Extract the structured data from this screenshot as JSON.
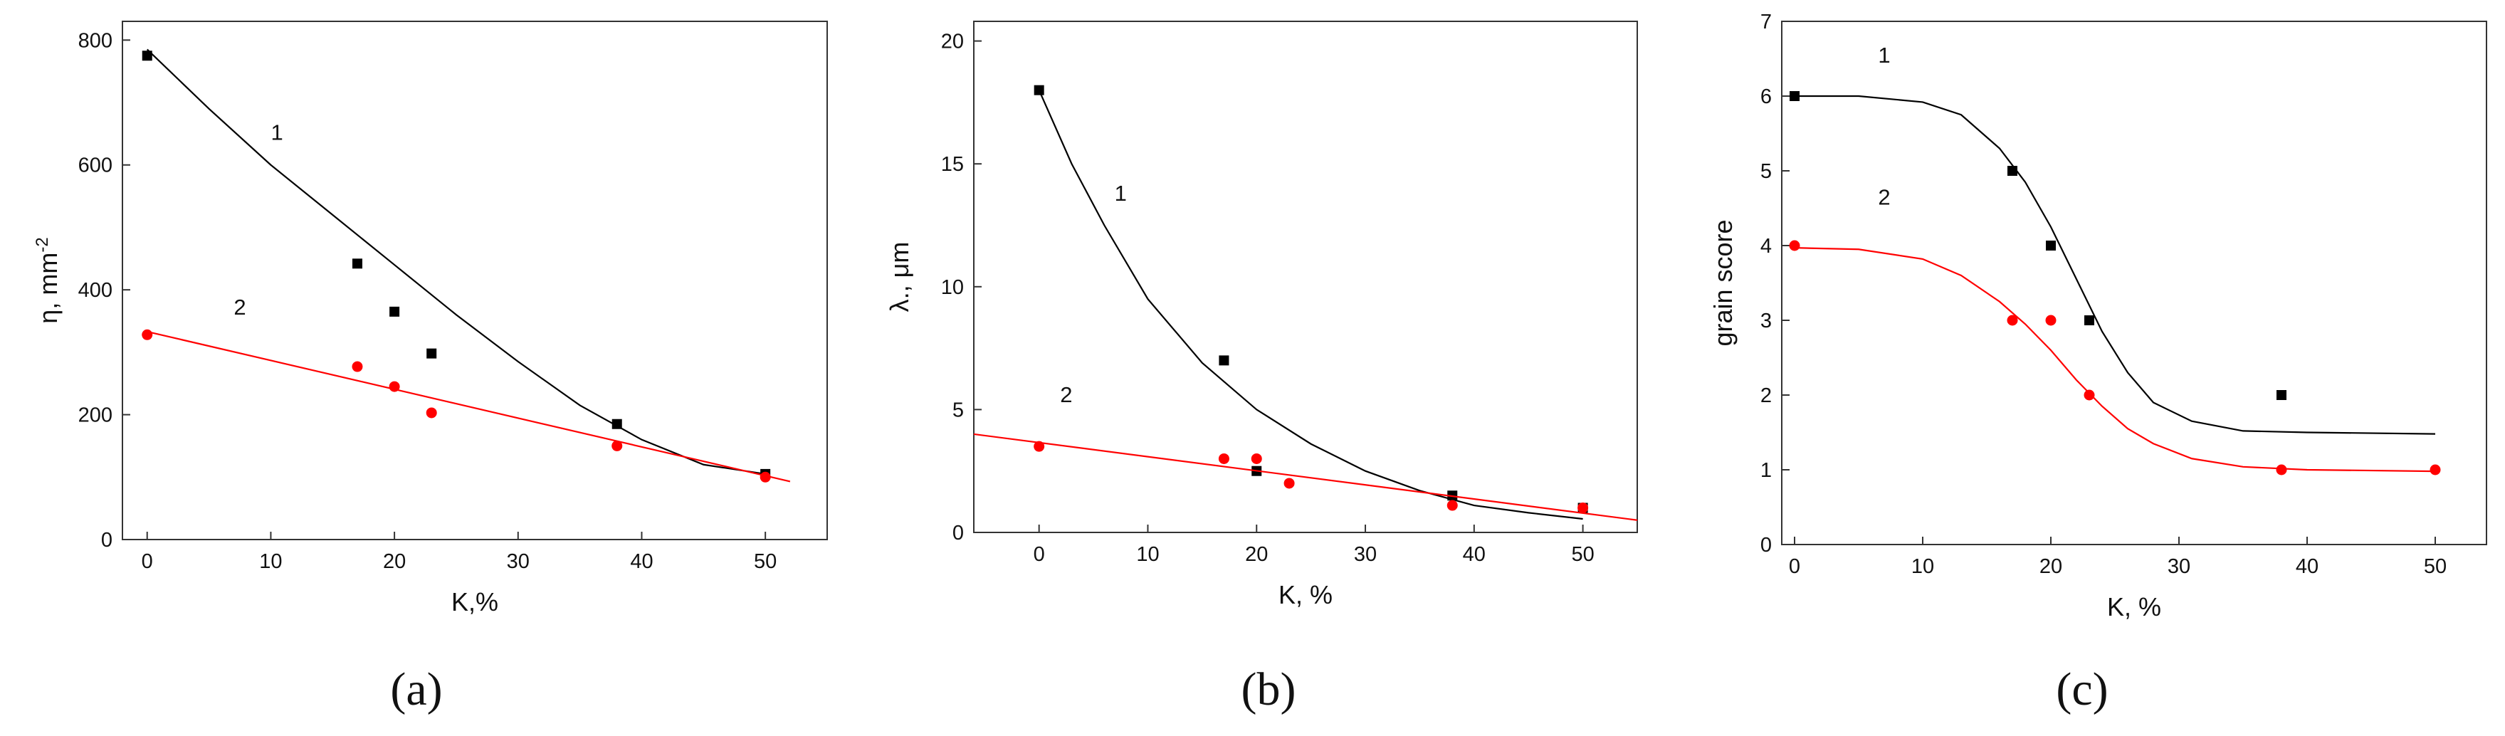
{
  "chart_data": [
    {
      "type": "scatter",
      "panel_label": "(a)",
      "xlabel": "K,%",
      "ylabel": "η, mm",
      "ylabel_sup": "-2",
      "xlim": [
        -2,
        55
      ],
      "ylim": [
        0,
        830
      ],
      "xticks": [
        0,
        10,
        20,
        30,
        40,
        50
      ],
      "yticks": [
        0,
        200,
        400,
        600,
        800
      ],
      "series": [
        {
          "name": "1",
          "color": "#000000",
          "marker": "square",
          "points": [
            [
              0,
              775
            ],
            [
              17,
              442
            ],
            [
              20,
              365
            ],
            [
              23,
              298
            ],
            [
              38,
              185
            ],
            [
              50,
              105
            ]
          ],
          "fit": [
            [
              0,
              785
            ],
            [
              5,
              690
            ],
            [
              10,
              600
            ],
            [
              15,
              520
            ],
            [
              20,
              440
            ],
            [
              25,
              360
            ],
            [
              30,
              285
            ],
            [
              35,
              215
            ],
            [
              40,
              160
            ],
            [
              45,
              120
            ],
            [
              50,
              105
            ]
          ],
          "label_at": [
            10.5,
            640
          ]
        },
        {
          "name": "2",
          "color": "#ff0000",
          "marker": "circle",
          "points": [
            [
              0,
              328
            ],
            [
              17,
              277
            ],
            [
              20,
              245
            ],
            [
              23,
              203
            ],
            [
              38,
              150
            ],
            [
              50,
              100
            ]
          ],
          "fit": [
            [
              0,
              333
            ],
            [
              52,
              93
            ]
          ],
          "label_at": [
            7.5,
            360
          ]
        }
      ]
    },
    {
      "type": "scatter",
      "panel_label": "(b)",
      "xlabel": "K, %",
      "ylabel": "λ., μm",
      "xlim": [
        -6,
        55
      ],
      "ylim": [
        0,
        20.8
      ],
      "xticks": [
        0,
        10,
        20,
        30,
        40,
        50
      ],
      "yticks": [
        0,
        5,
        10,
        15,
        20
      ],
      "series": [
        {
          "name": "1",
          "color": "#000000",
          "marker": "square",
          "points": [
            [
              0,
              18
            ],
            [
              17,
              7
            ],
            [
              20,
              2.5
            ],
            [
              38,
              1.5
            ],
            [
              50,
              1
            ]
          ],
          "fit": [
            [
              0,
              18
            ],
            [
              3,
              15
            ],
            [
              6,
              12.5
            ],
            [
              10,
              9.5
            ],
            [
              15,
              6.9
            ],
            [
              20,
              5
            ],
            [
              25,
              3.6
            ],
            [
              30,
              2.5
            ],
            [
              35,
              1.7
            ],
            [
              40,
              1.1
            ],
            [
              45,
              0.8
            ],
            [
              50,
              0.55
            ]
          ],
          "label_at": [
            7.5,
            13.5
          ]
        },
        {
          "name": "2",
          "color": "#ff0000",
          "marker": "circle",
          "points": [
            [
              0,
              3.5
            ],
            [
              17,
              3
            ],
            [
              20,
              3
            ],
            [
              23,
              2
            ],
            [
              38,
              1.1
            ],
            [
              50,
              1
            ]
          ],
          "fit": [
            [
              -6,
              4
            ],
            [
              55,
              0.5
            ]
          ],
          "label_at": [
            2.5,
            5.3
          ]
        }
      ]
    },
    {
      "type": "scatter",
      "panel_label": "(c)",
      "xlabel": "K, %",
      "ylabel": "grain score",
      "xlim": [
        -1,
        54
      ],
      "ylim": [
        0,
        7
      ],
      "xticks": [
        0,
        10,
        20,
        30,
        40,
        50
      ],
      "yticks": [
        0,
        1,
        2,
        3,
        4,
        5,
        6,
        7
      ],
      "series": [
        {
          "name": "1",
          "color": "#000000",
          "marker": "square",
          "points": [
            [
              0,
              6
            ],
            [
              17,
              5
            ],
            [
              20,
              4
            ],
            [
              23,
              3
            ],
            [
              38,
              2
            ]
          ],
          "fit": [
            [
              0,
              6
            ],
            [
              5,
              6
            ],
            [
              10,
              5.92
            ],
            [
              13,
              5.75
            ],
            [
              16,
              5.3
            ],
            [
              18,
              4.85
            ],
            [
              20,
              4.25
            ],
            [
              22,
              3.55
            ],
            [
              24,
              2.85
            ],
            [
              26,
              2.3
            ],
            [
              28,
              1.9
            ],
            [
              31,
              1.65
            ],
            [
              35,
              1.52
            ],
            [
              40,
              1.5
            ],
            [
              50,
              1.48
            ]
          ],
          "label_at": [
            7,
            6.45
          ]
        },
        {
          "name": "2",
          "color": "#ff0000",
          "marker": "circle",
          "points": [
            [
              0,
              4
            ],
            [
              17,
              3
            ],
            [
              20,
              3
            ],
            [
              23,
              2
            ],
            [
              38,
              1
            ],
            [
              50,
              1
            ]
          ],
          "fit": [
            [
              0,
              3.97
            ],
            [
              5,
              3.95
            ],
            [
              10,
              3.82
            ],
            [
              13,
              3.6
            ],
            [
              16,
              3.25
            ],
            [
              18,
              2.95
            ],
            [
              20,
              2.6
            ],
            [
              22,
              2.2
            ],
            [
              24,
              1.85
            ],
            [
              26,
              1.55
            ],
            [
              28,
              1.35
            ],
            [
              31,
              1.15
            ],
            [
              35,
              1.04
            ],
            [
              40,
              1
            ],
            [
              50,
              0.98
            ]
          ],
          "label_at": [
            7,
            4.55
          ]
        }
      ]
    }
  ]
}
